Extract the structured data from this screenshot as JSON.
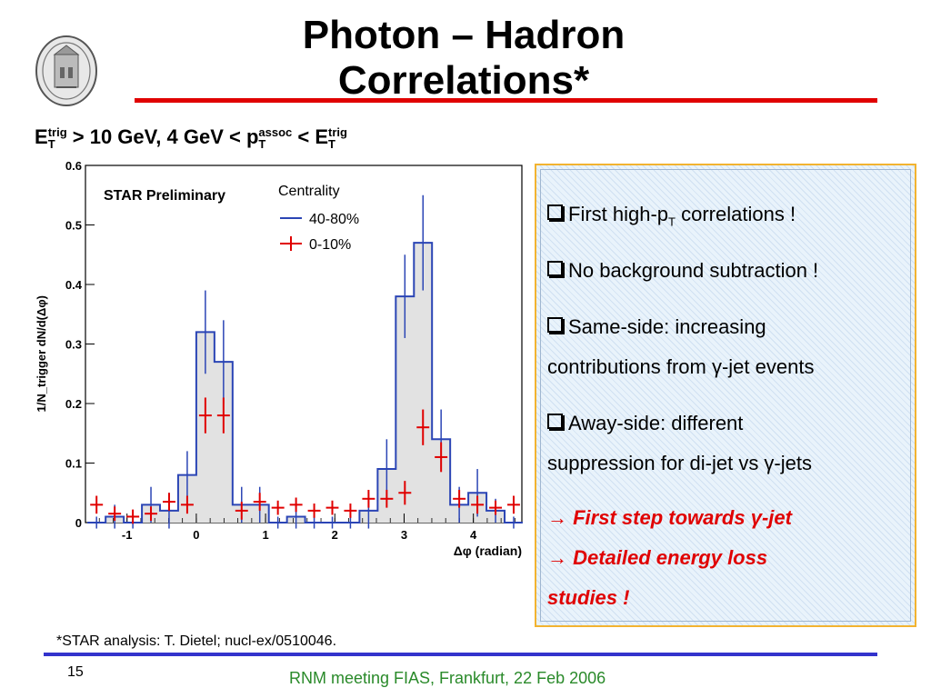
{
  "slide": {
    "title_line1": "Photon – Hadron",
    "title_line2": "Correlations*",
    "page_number": "15",
    "footer": "RNM meeting FIAS, Frankfurt, 22 Feb 2006",
    "footnote": "*STAR analysis: T. Dietel; nucl-ex/0510046."
  },
  "plot_header": {
    "e": "E",
    "trig": "trig",
    "t": "T",
    "mid": " > 10 GeV, 4 GeV < p",
    "assoc": "assoc",
    "lt": " < E"
  },
  "bullets": {
    "b1_a": "First high-p",
    "b1_sub": "T",
    "b1_b": " correlations !",
    "b2": "No background subtraction !",
    "b3_l1": "Same-side: increasing",
    "b3_l2": "contributions from γ-jet events",
    "b4_l1": "Away-side: different",
    "b4_l2": "suppression for di-jet vs γ-jets",
    "c1": "→ First step towards γ-jet",
    "c2": "→ Detailed energy loss",
    "c3": "studies !"
  },
  "chart_data": {
    "type": "histogram",
    "title": "STAR Preliminary",
    "xlabel": "Δφ (radian)",
    "ylabel": "1/N_trigger dN/d(Δφ)",
    "xlim": [
      -1.6,
      4.7
    ],
    "ylim": [
      0,
      0.6
    ],
    "x_ticks": [
      -1,
      0,
      1,
      2,
      3,
      4
    ],
    "y_ticks": [
      0,
      0.1,
      0.2,
      0.3,
      0.4,
      0.5,
      0.6
    ],
    "y_tick_labels": [
      "0",
      "0.1",
      "0.2",
      "0.3",
      "0.4",
      "0.5",
      "0.6"
    ],
    "legend_title": "Centrality",
    "legend_position": "top-right",
    "bin_edges": [
      -1.571,
      -1.309,
      -1.047,
      -0.785,
      -0.524,
      -0.262,
      0.0,
      0.262,
      0.524,
      0.785,
      1.047,
      1.309,
      1.571,
      1.833,
      2.094,
      2.356,
      2.618,
      2.88,
      3.142,
      3.403,
      3.665,
      3.927,
      4.189,
      4.451,
      4.712
    ],
    "series": [
      {
        "name": "40-80%",
        "color": "#2b45b5",
        "style": "histogram",
        "values": [
          0.0,
          0.01,
          0.0,
          0.03,
          0.02,
          0.08,
          0.32,
          0.27,
          0.03,
          0.03,
          0.0,
          0.01,
          0.0,
          0.0,
          0.0,
          0.02,
          0.09,
          0.38,
          0.47,
          0.14,
          0.03,
          0.05,
          0.02,
          0.0
        ],
        "errors": [
          0.01,
          0.02,
          0.01,
          0.03,
          0.03,
          0.04,
          0.07,
          0.07,
          0.03,
          0.03,
          0.01,
          0.02,
          0.01,
          0.01,
          0.01,
          0.03,
          0.05,
          0.07,
          0.08,
          0.05,
          0.03,
          0.04,
          0.02,
          0.01
        ]
      },
      {
        "name": "0-10%",
        "color": "#e00000",
        "style": "points",
        "values": [
          0.03,
          0.015,
          0.01,
          0.015,
          0.035,
          0.03,
          0.18,
          0.18,
          0.02,
          0.035,
          0.025,
          0.03,
          0.02,
          0.025,
          0.02,
          0.04,
          0.04,
          0.05,
          0.16,
          0.11,
          0.04,
          0.03,
          0.025,
          0.03
        ],
        "errors": [
          0.015,
          0.012,
          0.012,
          0.012,
          0.015,
          0.015,
          0.03,
          0.03,
          0.015,
          0.015,
          0.012,
          0.012,
          0.012,
          0.012,
          0.012,
          0.015,
          0.015,
          0.02,
          0.03,
          0.025,
          0.015,
          0.015,
          0.012,
          0.015
        ]
      }
    ]
  },
  "colors": {
    "title_rule": "#e00000",
    "footer_rule": "#3333cc",
    "footer_text": "#2a8a2a",
    "box_border": "#f2b330",
    "emphasis": "#e00000"
  }
}
